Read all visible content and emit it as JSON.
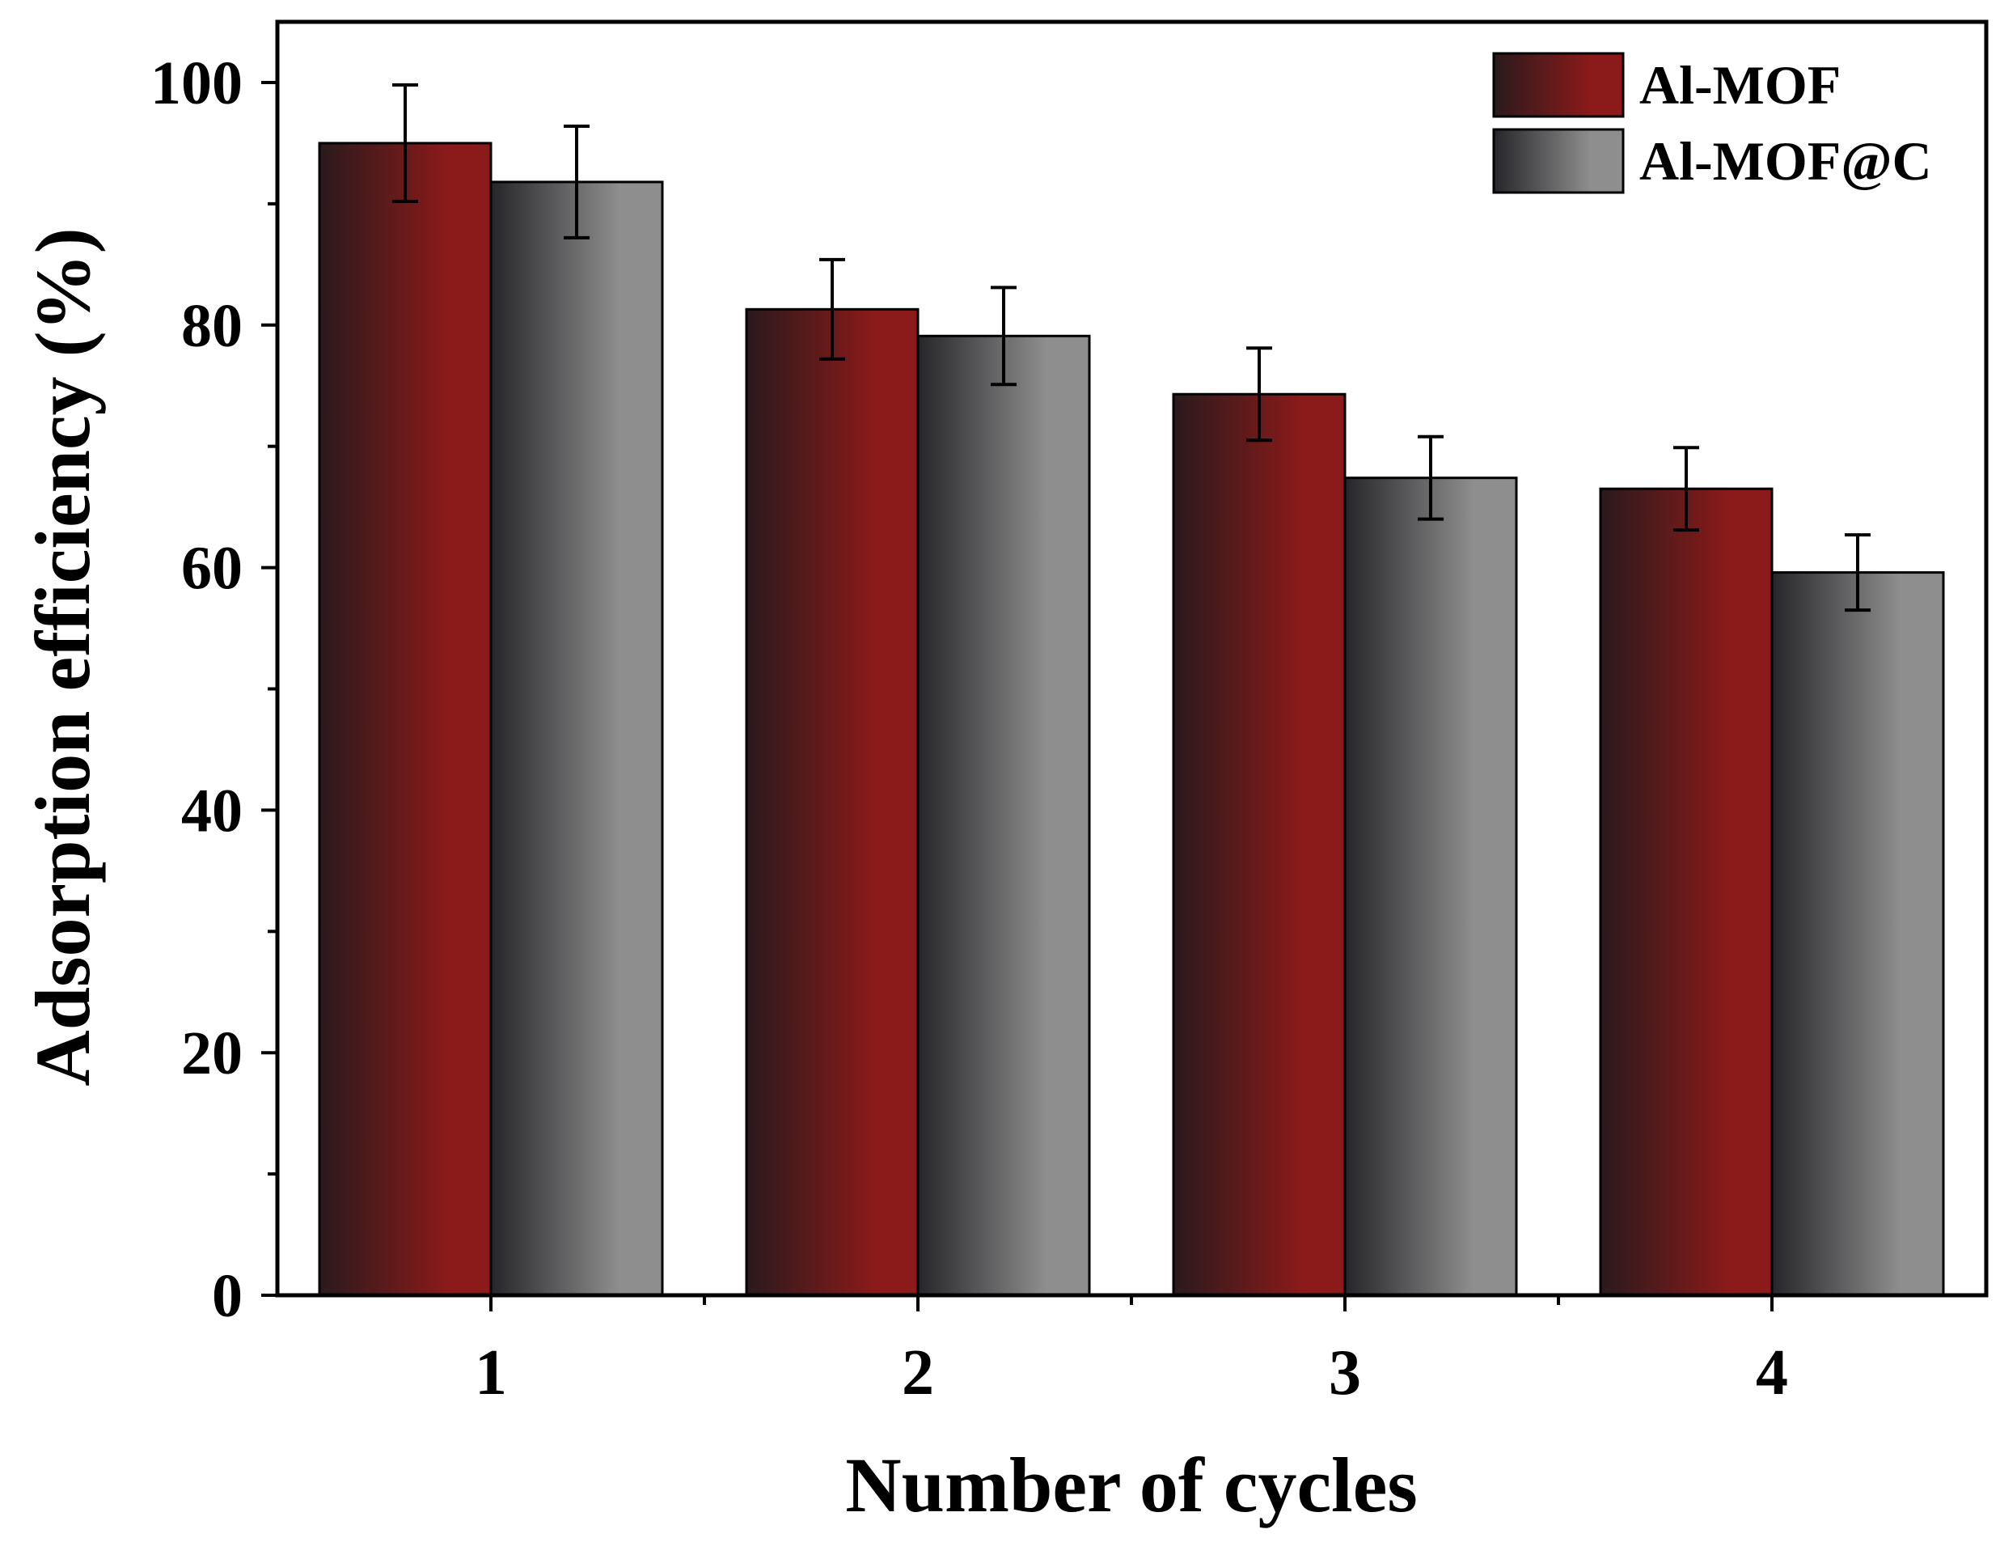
{
  "chart_data": {
    "type": "bar",
    "title": "",
    "xlabel": "Number of cycles",
    "ylabel": "Adsorption efficiency (%)",
    "categories": [
      "1",
      "2",
      "3",
      "4"
    ],
    "ylim": [
      0,
      105
    ],
    "yticks": [
      0,
      20,
      40,
      60,
      80,
      100
    ],
    "y_minor_step": 10,
    "series": [
      {
        "name": "Al-MOF",
        "values": [
          95.0,
          81.3,
          74.3,
          66.5
        ],
        "errors": [
          4.8,
          4.1,
          3.8,
          3.4
        ],
        "color_dark": "#2a1a1c",
        "color_light": "#8b1a1a"
      },
      {
        "name": "Al-MOF@C",
        "values": [
          91.8,
          79.1,
          67.4,
          59.6
        ],
        "errors": [
          4.6,
          4.0,
          3.4,
          3.1
        ],
        "color_dark": "#26262a",
        "color_light": "#8e8e8e"
      }
    ],
    "legend_position": "top-right",
    "grid": false
  }
}
